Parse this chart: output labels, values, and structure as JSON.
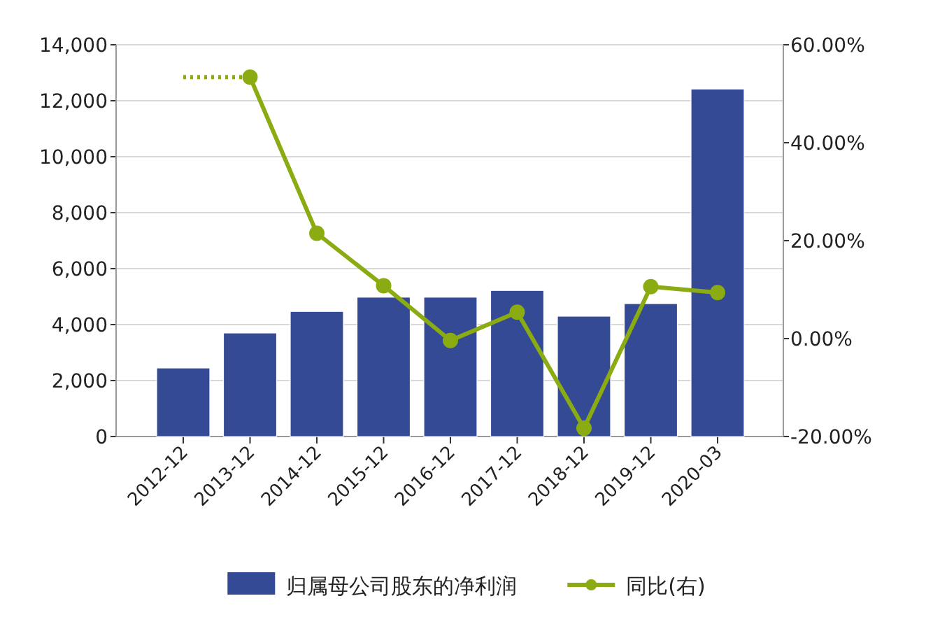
{
  "chart_data": {
    "type": "bar",
    "categories": [
      "2012-12",
      "2013-12",
      "2014-12",
      "2015-12",
      "2016-12",
      "2017-12",
      "2018-12",
      "2019-12",
      "2020-03"
    ],
    "series": [
      {
        "name": "归属母公司股东的净利润",
        "color": "#344a94",
        "values": [
          2450,
          3700,
          4470,
          4980,
          4980,
          5220,
          4300,
          4750,
          12420
        ]
      },
      {
        "name": "同比(右)",
        "type": "line",
        "axis": "y2",
        "color": "#8aac12",
        "marker": "circle",
        "values": [
          null,
          53.4,
          21.5,
          10.8,
          -0.4,
          5.4,
          -18.3,
          10.6,
          9.4
        ]
      },
      {
        "type": "line",
        "axis": "y2",
        "color": "#8aac12",
        "marker": "none",
        "line_style": "dotted",
        "values": [
          53.4,
          53.4,
          null,
          null,
          null,
          null,
          null,
          null,
          null
        ]
      }
    ],
    "ylim": [
      0,
      14000
    ],
    "yticks": [
      {
        "value": 0,
        "label": "0"
      },
      {
        "value": 2000,
        "label": "2,000"
      },
      {
        "value": 4000,
        "label": "4,000"
      },
      {
        "value": 6000,
        "label": "6,000"
      },
      {
        "value": 8000,
        "label": "8,000"
      },
      {
        "value": 10000,
        "label": "10,000"
      },
      {
        "value": 12000,
        "label": "12,000"
      },
      {
        "value": 14000,
        "label": "14,000"
      }
    ],
    "y2lim": [
      -20,
      60
    ],
    "y2ticks": [
      {
        "value": -20,
        "label": "-20.00%"
      },
      {
        "value": 0,
        "label": "0.00%"
      },
      {
        "value": 20,
        "label": "20.00%"
      },
      {
        "value": 40,
        "label": "40.00%"
      },
      {
        "value": 60,
        "label": "60.00%"
      }
    ],
    "grid": "y",
    "legend": "bottom"
  }
}
